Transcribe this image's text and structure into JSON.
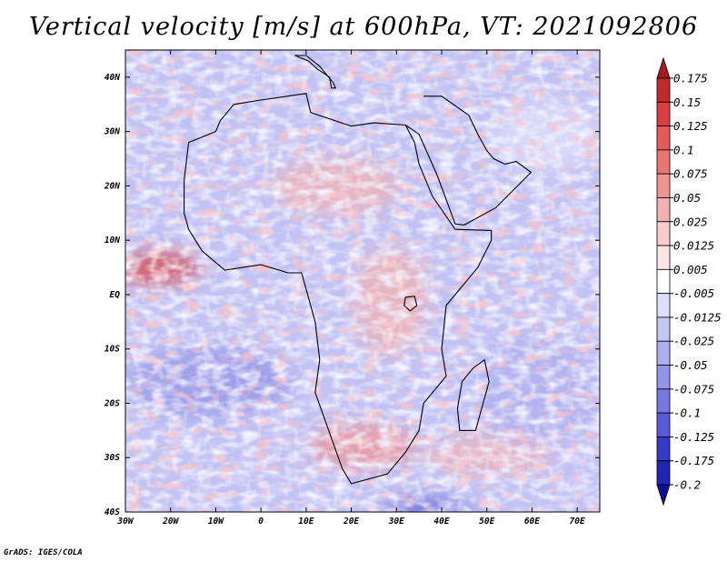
{
  "title": "Vertical velocity [m/s] at 600hPa, VT: 2021092806",
  "credit": "GrADS: IGES/COLA",
  "map": {
    "lon_range": [
      -30,
      75
    ],
    "lat_range": [
      -40,
      45
    ],
    "lon_ticks": [
      {
        "v": -30,
        "label": "30W"
      },
      {
        "v": -20,
        "label": "20W"
      },
      {
        "v": -10,
        "label": "10W"
      },
      {
        "v": 0,
        "label": "0"
      },
      {
        "v": 10,
        "label": "10E"
      },
      {
        "v": 20,
        "label": "20E"
      },
      {
        "v": 30,
        "label": "30E"
      },
      {
        "v": 40,
        "label": "40E"
      },
      {
        "v": 50,
        "label": "50E"
      },
      {
        "v": 60,
        "label": "60E"
      },
      {
        "v": 70,
        "label": "70E"
      }
    ],
    "lat_ticks": [
      {
        "v": 40,
        "label": "40N"
      },
      {
        "v": 30,
        "label": "30N"
      },
      {
        "v": 20,
        "label": "20N"
      },
      {
        "v": 10,
        "label": "10N"
      },
      {
        "v": 0,
        "label": "EQ"
      },
      {
        "v": -10,
        "label": "10S"
      },
      {
        "v": -20,
        "label": "20S"
      },
      {
        "v": -30,
        "label": "30S"
      },
      {
        "v": -40,
        "label": "40S"
      }
    ],
    "africa_outline": [
      [
        -17,
        21
      ],
      [
        -16,
        28
      ],
      [
        -10,
        30
      ],
      [
        -9,
        32
      ],
      [
        -6,
        35
      ],
      [
        0,
        35.8
      ],
      [
        10,
        37
      ],
      [
        11,
        33.5
      ],
      [
        20,
        31
      ],
      [
        25,
        31.6
      ],
      [
        32,
        31.2
      ],
      [
        34,
        28
      ],
      [
        35,
        24
      ],
      [
        38,
        18
      ],
      [
        43,
        12
      ],
      [
        51,
        11.8
      ],
      [
        51,
        10
      ],
      [
        48,
        5
      ],
      [
        41,
        -2
      ],
      [
        40,
        -10
      ],
      [
        41,
        -15
      ],
      [
        36,
        -20
      ],
      [
        35,
        -25
      ],
      [
        32,
        -29
      ],
      [
        28,
        -33
      ],
      [
        20,
        -34.8
      ],
      [
        18,
        -32
      ],
      [
        12,
        -18
      ],
      [
        13,
        -12
      ],
      [
        12,
        -5
      ],
      [
        9,
        4
      ],
      [
        6,
        4
      ],
      [
        0,
        5.5
      ],
      [
        -8,
        4.5
      ],
      [
        -13,
        8
      ],
      [
        -16,
        12
      ],
      [
        -17,
        15
      ]
    ],
    "madagascar_outline": [
      [
        49.5,
        -12
      ],
      [
        50.5,
        -16
      ],
      [
        47.5,
        -25
      ],
      [
        44,
        -25
      ],
      [
        43.5,
        -21
      ],
      [
        44.5,
        -16
      ],
      [
        47,
        -13.5
      ]
    ],
    "arabia_outline": [
      [
        32,
        31.2
      ],
      [
        35,
        29.5
      ],
      [
        39,
        22
      ],
      [
        43,
        13
      ],
      [
        45,
        12.8
      ],
      [
        52,
        16
      ],
      [
        58,
        21
      ],
      [
        59.8,
        22.5
      ],
      [
        56.5,
        24.5
      ],
      [
        54,
        24
      ],
      [
        51.5,
        25
      ],
      [
        50,
        26.5
      ],
      [
        48,
        29.5
      ],
      [
        46,
        33
      ],
      [
        40,
        36.5
      ],
      [
        36,
        36.5
      ]
    ],
    "italy_outline": [
      [
        7.5,
        44
      ],
      [
        10,
        44
      ],
      [
        13,
        42
      ],
      [
        16,
        39
      ],
      [
        16.5,
        38
      ],
      [
        15.6,
        38
      ],
      [
        15.2,
        40
      ],
      [
        12.5,
        41.5
      ],
      [
        10.5,
        43
      ]
    ],
    "lake_victoria": [
      [
        32,
        -0.5
      ],
      [
        34,
        -0.3
      ],
      [
        34.5,
        -2
      ],
      [
        33,
        -3
      ],
      [
        31.7,
        -2
      ]
    ],
    "colorbar": {
      "levels": [
        "0.175",
        "0.15",
        "0.125",
        "0.1",
        "0.075",
        "0.05",
        "0.025",
        "0.0125",
        "0.005",
        "-0.005",
        "-0.0125",
        "-0.025",
        "-0.05",
        "-0.075",
        "-0.1",
        "-0.125",
        "-0.175",
        "-0.2"
      ],
      "colors": [
        "#a51a1c",
        "#c22b2e",
        "#d83d3f",
        "#e35b5b",
        "#ea7575",
        "#ef9393",
        "#f3b0b0",
        "#f8cccc",
        "#fce5e5",
        "#ffffff",
        "#dedefb",
        "#c6c6f5",
        "#aeaeef",
        "#9595e8",
        "#7777e0",
        "#5a5ad8",
        "#3939c9",
        "#2323b4",
        "#0e0e9a"
      ]
    }
  }
}
